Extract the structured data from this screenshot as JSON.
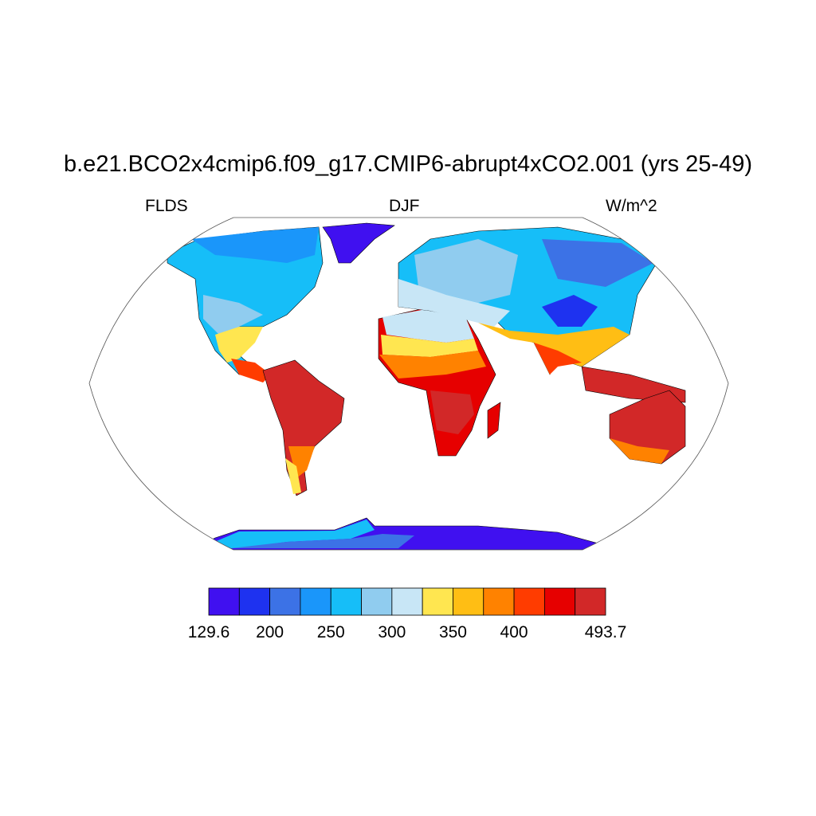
{
  "title": "b.e21.BCO2x4cmip6.f09_g17.CMIP6-abrupt4xCO2.001 (yrs 25-49)",
  "left_label": "FLDS",
  "center_label": "DJF",
  "right_label": "W/m^2",
  "projection": "Robinson",
  "colorbar": {
    "levels": [
      129.6,
      175,
      200,
      225,
      250,
      275,
      300,
      325,
      350,
      375,
      400,
      425,
      450,
      493.7
    ],
    "tick_labels": [
      {
        "level_index": 0,
        "text": "129.6"
      },
      {
        "level_index": 2,
        "text": "200"
      },
      {
        "level_index": 4,
        "text": "250"
      },
      {
        "level_index": 6,
        "text": "300"
      },
      {
        "level_index": 8,
        "text": "350"
      },
      {
        "level_index": 10,
        "text": "400"
      },
      {
        "level_index": 13,
        "text": "493.7"
      }
    ],
    "colors": [
      "#4010f0",
      "#1e32f0",
      "#3c72e6",
      "#1a96fa",
      "#16bef8",
      "#90ccef",
      "#c8e6f6",
      "#ffe650",
      "#ffbe14",
      "#ff8200",
      "#ff3c00",
      "#e60000",
      "#d22828"
    ]
  }
}
